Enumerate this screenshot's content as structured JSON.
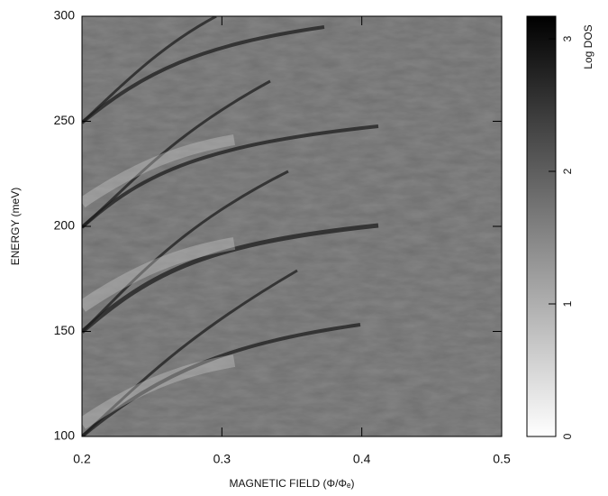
{
  "chart_data": {
    "type": "heatmap",
    "x_label": "MAGNETIC FIELD (Φ/Φₑ)",
    "y_label": "ENERGY (meV)",
    "colorbar_label": "Log DOS",
    "xlim": [
      0.2,
      0.5
    ],
    "xticks": [
      0.2,
      0.3,
      0.4,
      0.5
    ],
    "ylim": [
      100,
      300
    ],
    "yticks": [
      100,
      150,
      200,
      250,
      300
    ],
    "zlim": [
      0,
      3.17
    ],
    "zticks": [
      0,
      1,
      2,
      3
    ],
    "colormap": [
      "#ffffff",
      "#000000"
    ]
  }
}
